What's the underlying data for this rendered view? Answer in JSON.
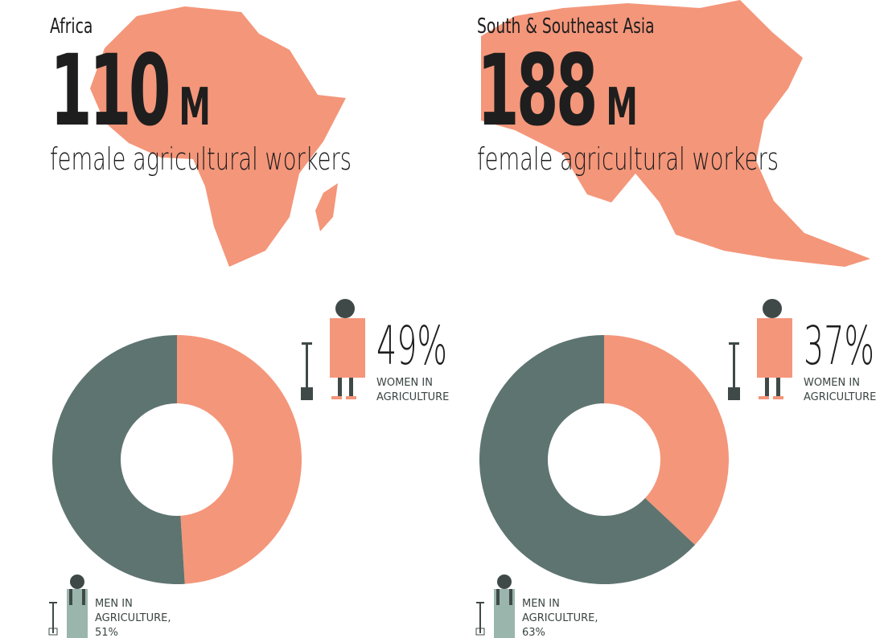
{
  "chart_data": [
    {
      "type": "donut",
      "title": "Africa",
      "headline_value": 110,
      "headline_unit": "M",
      "subtitle": "female agricultural workers",
      "categories": [
        "WOMEN IN AGRICULTURE",
        "MEN IN AGRICULTURE,"
      ],
      "values": [
        49,
        51
      ],
      "value_labels": [
        "49%",
        "51%"
      ],
      "colors": [
        "#f4967a",
        "#5e7470"
      ]
    },
    {
      "type": "donut",
      "title": "South & Southeast Asia",
      "headline_value": 188,
      "headline_unit": "M",
      "subtitle": "female agricultural workers",
      "categories": [
        "WOMEN IN AGRICULTURE",
        "MEN IN AGRICULTURE,"
      ],
      "values": [
        37,
        63
      ],
      "value_labels": [
        "37%",
        "63%"
      ],
      "colors": [
        "#f4967a",
        "#5e7470"
      ]
    }
  ]
}
